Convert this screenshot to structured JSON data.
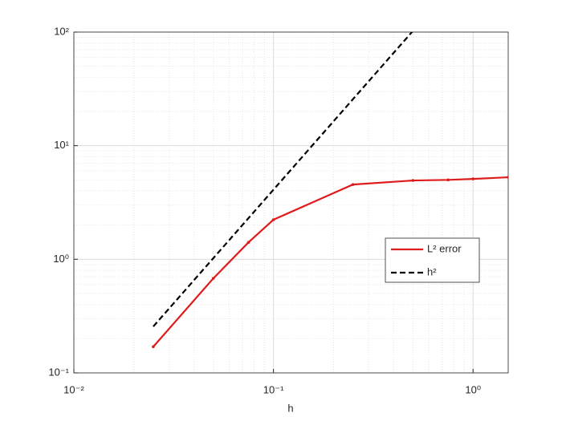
{
  "chart_data": {
    "type": "line",
    "xlabel": "h",
    "xscale": "log",
    "yscale": "log",
    "xlim": [
      0.01,
      1.5
    ],
    "ylim": [
      0.1,
      100
    ],
    "xticks": [
      {
        "value": 0.01,
        "label": "10⁻²"
      },
      {
        "value": 0.1,
        "label": "10⁻¹"
      },
      {
        "value": 1,
        "label": "10⁰"
      }
    ],
    "yticks": [
      {
        "value": 0.1,
        "label": "10⁻¹"
      },
      {
        "value": 1,
        "label": "10⁰"
      },
      {
        "value": 10,
        "label": "10¹"
      },
      {
        "value": 100,
        "label": "10²"
      }
    ],
    "grid": true,
    "minor_grid": true,
    "legend": "east",
    "series": [
      {
        "name": "L² error",
        "color": "#e01b1b",
        "style": "solid",
        "markers": true,
        "x": [
          0.025,
          0.05,
          0.075,
          0.1,
          0.25,
          0.5,
          0.75,
          1,
          1.5
        ],
        "values": [
          0.17,
          0.68,
          1.41,
          2.23,
          4.55,
          4.94,
          5.0,
          5.1,
          5.27
        ]
      },
      {
        "name": "h²",
        "color": "#000000",
        "style": "dashed",
        "markers": false,
        "x": [
          0.025,
          0.5
        ],
        "values": [
          0.256,
          102.5
        ]
      }
    ]
  }
}
